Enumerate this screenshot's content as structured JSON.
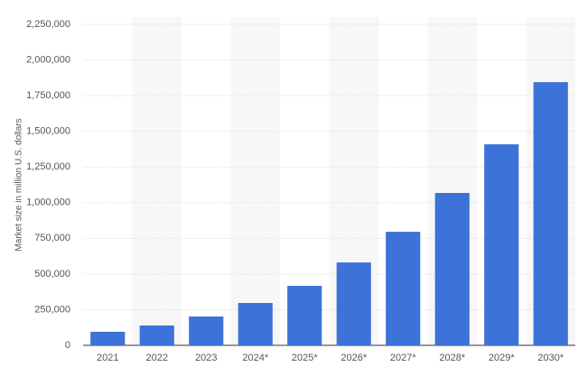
{
  "chart_data": {
    "type": "bar",
    "y_label": "Market size in million U.S. dollars",
    "categories": [
      "2021",
      "2022",
      "2023",
      "2024*",
      "2025*",
      "2026*",
      "2027*",
      "2028*",
      "2029*",
      "2030*"
    ],
    "values": [
      95000,
      139000,
      202000,
      297000,
      417000,
      581000,
      796000,
      1068000,
      1409000,
      1845000
    ],
    "color": "#3d72d8",
    "ylim": [
      0,
      2250000
    ],
    "yticks": [
      0,
      {
        "value": 250000,
        "label": "250,000"
      },
      {
        "value": 500000,
        "label": "500,000"
      },
      {
        "value": 750000,
        "label": "750,000"
      },
      {
        "value": 1000000,
        "label": "1,000,000"
      },
      {
        "value": 1250000,
        "label": "1,250,000"
      },
      {
        "value": 1500000,
        "label": "1,500,000"
      },
      {
        "value": 1750000,
        "label": "1,750,000"
      },
      {
        "value": 2000000,
        "label": "2,000,000"
      },
      {
        "value": 2250000,
        "label": "2,250,000"
      }
    ],
    "grid": true
  }
}
